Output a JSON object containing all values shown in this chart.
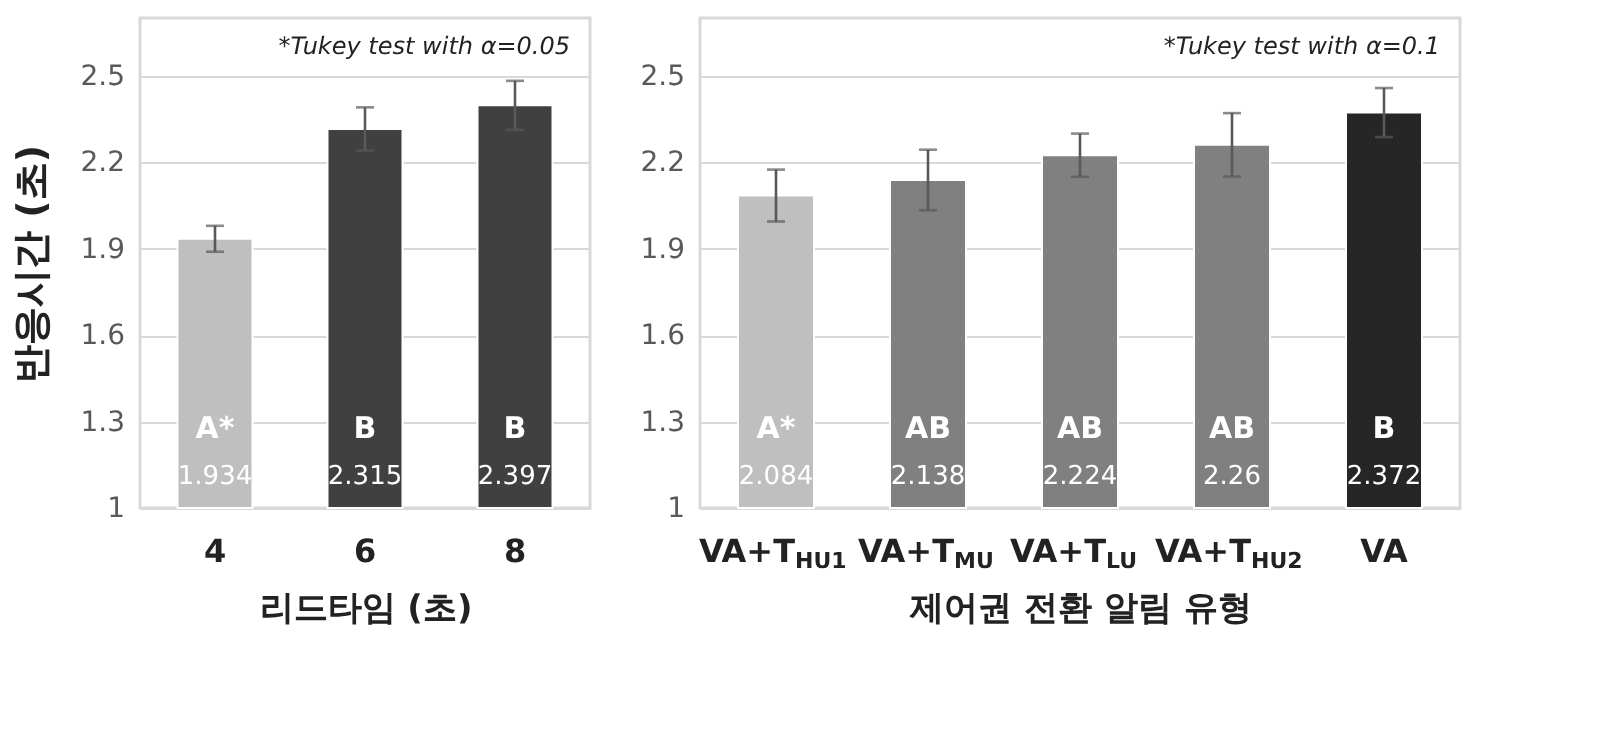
{
  "chart_data": [
    {
      "type": "bar",
      "categories": [
        "4",
        "6",
        "8"
      ],
      "values": [
        1.934,
        2.315,
        2.397
      ],
      "colors": [
        "#bfbfbf",
        "#404040",
        "#404040"
      ],
      "errors": [
        0.045,
        0.075,
        0.085
      ],
      "data_labels": true,
      "ylim": [
        1,
        2.7
      ],
      "yticks": [
        1,
        1.3,
        1.6,
        1.9,
        2.2,
        2.5
      ],
      "grid": "y",
      "xlabel": "리드타임 (초)",
      "ylabel": "반응시간 (초)",
      "annotations": [
        "*Tukey test with α=0.05",
        "A*",
        "B",
        "B"
      ]
    },
    {
      "type": "bar",
      "categories": [
        "VA+T$_{HU1}$",
        "VA+T$_{MU}$",
        "VA+T$_{LU}$",
        "VA+T$_{HU2}$",
        "VA"
      ],
      "values": [
        2.084,
        2.138,
        2.224,
        2.26,
        2.372
      ],
      "colors": [
        "#bfbfbf",
        "#808080",
        "#808080",
        "#808080",
        "#262626"
      ],
      "errors": [
        0.09,
        0.105,
        0.075,
        0.11,
        0.085
      ],
      "data_labels": true,
      "ylim": [
        1,
        2.7
      ],
      "yticks": [
        1,
        1.3,
        1.6,
        1.9,
        2.2,
        2.5
      ],
      "grid": "y",
      "xlabel": "제어권 전환 알림 유형",
      "annotations": [
        "*Tukey test with α=0.1",
        "A*",
        "AB",
        "AB",
        "AB",
        "B"
      ]
    }
  ]
}
